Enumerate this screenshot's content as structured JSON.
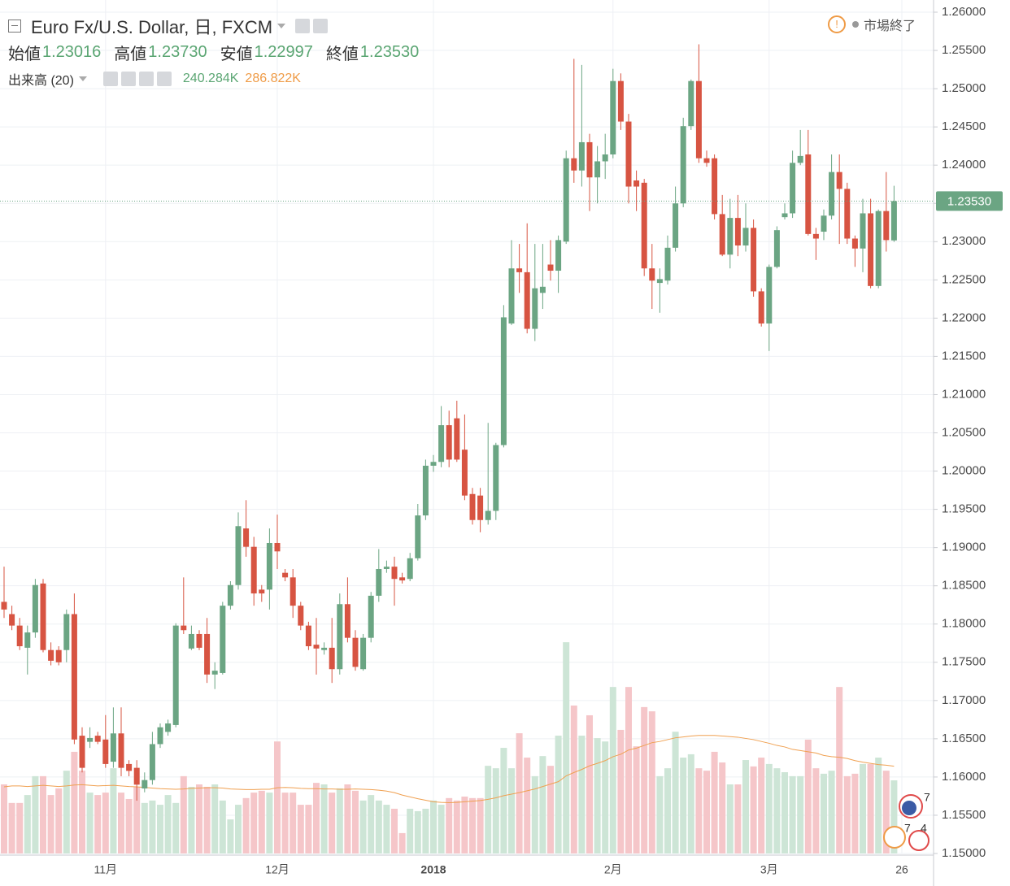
{
  "chart_data": {
    "type": "candlestick",
    "title": "Euro Fx/U.S. Dollar, 日, FXCM",
    "status": "市場終了",
    "legend": [
      {
        "label": "始値",
        "value": "1.23016"
      },
      {
        "label": "高値",
        "value": "1.23730"
      },
      {
        "label": "安値",
        "value": "1.22997"
      },
      {
        "label": "終値",
        "value": "1.23530"
      }
    ],
    "volume_title": "出来高 (20)",
    "volume_labels": [
      "240.284K",
      "286.822K"
    ],
    "events": [
      "7",
      "7",
      "4"
    ],
    "up_color": "#6ba583",
    "down_color": "#d75442",
    "volume_up_color": "#cde5d6",
    "volume_down_color": "#f5c6c9",
    "volume_ma_color": "#f0a050",
    "categories": [
      null,
      null,
      null,
      null,
      null,
      null,
      null,
      null,
      null,
      null,
      null,
      null,
      null,
      "11月",
      null,
      null,
      null,
      null,
      null,
      null,
      null,
      null,
      null,
      null,
      null,
      null,
      null,
      null,
      null,
      null,
      null,
      null,
      null,
      null,
      null,
      "12月",
      null,
      null,
      null,
      null,
      null,
      null,
      null,
      null,
      null,
      null,
      null,
      null,
      null,
      null,
      null,
      null,
      null,
      null,
      null,
      "2018",
      null,
      null,
      null,
      null,
      null,
      null,
      null,
      null,
      null,
      null,
      null,
      null,
      null,
      null,
      null,
      null,
      null,
      null,
      null,
      null,
      null,
      null,
      "2月",
      null,
      null,
      null,
      null,
      null,
      null,
      null,
      null,
      null,
      null,
      null,
      null,
      null,
      null,
      null,
      null,
      null,
      null,
      null,
      "3月",
      null,
      null,
      null,
      null,
      null,
      null,
      null,
      null,
      null,
      null,
      null,
      null,
      null,
      null,
      null,
      null,
      "26"
    ],
    "open": [
      1.1829,
      1.1813,
      1.1798,
      1.1769,
      1.1789,
      1.1853,
      1.1766,
      1.1766,
      1.1766,
      1.1813,
      1.1654,
      1.1646,
      1.1654,
      1.1649,
      1.162,
      1.1657,
      1.1617,
      1.1612,
      1.1585,
      1.1596,
      1.1643,
      1.1659,
      1.1668,
      1.1798,
      1.1768,
      1.1787,
      1.1787,
      1.1734,
      1.1736,
      1.1824,
      1.1851,
      1.1925,
      1.1901,
      1.1845,
      1.1845,
      1.1906,
      1.1867,
      1.1861,
      1.1824,
      1.1798,
      1.1773,
      1.1766,
      1.1769,
      1.1741,
      1.1826,
      1.1782,
      1.1741,
      1.1782,
      1.1837,
      1.1872,
      1.1875,
      1.1861,
      1.1859,
      1.1886,
      1.1942,
      1.2007,
      1.2012,
      1.206,
      1.2069,
      1.2028,
      1.197,
      1.1968,
      1.1936,
      1.1948,
      1.2034,
      1.2193,
      1.2265,
      1.226,
      1.2186,
      1.2233,
      1.227,
      1.2262,
      1.23,
      1.2409,
      1.2393,
      1.243,
      1.2384,
      1.2405,
      1.2414,
      1.251,
      1.2457,
      1.238,
      1.2377,
      1.2265,
      1.2246,
      1.2249,
      1.2292,
      1.235,
      1.2451,
      1.251,
      1.2409,
      1.2409,
      1.2336,
      1.2283,
      1.2331,
      1.2295,
      1.2318,
      1.2235,
      1.2193,
      1.2267,
      1.2332,
      1.2337,
      1.2403,
      1.2414,
      1.231,
      1.2313,
      1.2334,
      1.2391,
      1.2369,
      1.2304,
      1.2291,
      1.2337,
      1.2242,
      1.234,
      1.23016,
      null
    ],
    "high": [
      1.1875,
      1.1824,
      1.1808,
      1.1798,
      1.1859,
      1.1859,
      1.1776,
      1.1771,
      1.1819,
      1.184,
      1.1665,
      1.1665,
      1.1659,
      1.1681,
      1.1691,
      1.1691,
      1.1622,
      1.1622,
      1.1606,
      1.1659,
      1.167,
      1.1675,
      1.1801,
      1.1861,
      1.1798,
      1.1792,
      1.1808,
      1.175,
      1.1829,
      1.1856,
      1.1946,
      1.1962,
      1.1914,
      1.1851,
      1.1925,
      1.1943,
      1.1872,
      1.1872,
      1.1829,
      1.1803,
      1.1808,
      1.1776,
      1.1808,
      1.184,
      1.1861,
      1.1792,
      1.1787,
      1.1842,
      1.1898,
      1.1883,
      1.1888,
      1.1867,
      1.1893,
      1.1957,
      1.2015,
      1.2021,
      1.2085,
      1.2079,
      1.2092,
      1.2074,
      1.1978,
      1.1978,
      1.2063,
      1.2037,
      1.2217,
      1.2302,
      1.2297,
      1.2324,
      1.2297,
      1.2297,
      1.2302,
      1.2308,
      1.2419,
      1.2539,
      1.2531,
      1.2441,
      1.2425,
      1.2441,
      1.2526,
      1.252,
      1.2467,
      1.2393,
      1.2382,
      1.2297,
      1.2265,
      1.2308,
      1.2372,
      1.2462,
      1.2512,
      1.2558,
      1.2419,
      1.2414,
      1.2361,
      1.2356,
      1.2361,
      1.235,
      1.2329,
      1.2239,
      1.227,
      1.232,
      1.235,
      1.2419,
      1.2446,
      1.2446,
      1.2318,
      1.2342,
      1.2414,
      1.2414,
      1.2377,
      1.2308,
      1.2356,
      1.2356,
      1.2342,
      1.2391,
      1.2373,
      null
    ],
    "low": [
      1.1808,
      1.1792,
      1.1766,
      1.1734,
      1.1782,
      1.1763,
      1.1746,
      1.1746,
      1.175,
      1.1643,
      1.1606,
      1.1638,
      1.1643,
      1.1612,
      1.1612,
      1.1601,
      1.1601,
      1.1569,
      1.158,
      1.159,
      1.1638,
      1.1654,
      1.1665,
      1.1787,
      1.1766,
      1.1766,
      1.1723,
      1.1715,
      1.1734,
      1.1819,
      1.1845,
      1.1888,
      1.1824,
      1.1829,
      1.1819,
      1.1872,
      1.1856,
      1.1808,
      1.1792,
      1.1766,
      1.1734,
      1.176,
      1.1723,
      1.1734,
      1.1776,
      1.1739,
      1.1739,
      1.1776,
      1.1829,
      1.1867,
      1.1824,
      1.1853,
      1.1856,
      1.1883,
      1.1936,
      1.1999,
      1.2005,
      1.2005,
      1.2012,
      1.1962,
      1.193,
      1.192,
      1.193,
      1.1936,
      1.2031,
      1.2191,
      1.2233,
      1.218,
      1.217,
      1.2212,
      1.2249,
      1.2233,
      1.2297,
      1.2377,
      1.2372,
      1.234,
      1.235,
      1.2382,
      1.2409,
      1.2446,
      1.235,
      1.234,
      1.2255,
      1.2212,
      1.2207,
      1.2244,
      1.2287,
      1.2345,
      1.2446,
      1.2403,
      1.2398,
      1.2329,
      1.2281,
      1.2265,
      1.2281,
      1.2287,
      1.2228,
      1.2189,
      1.2157,
      1.2265,
      1.2329,
      1.2331,
      1.24,
      1.2308,
      1.2276,
      1.2302,
      1.2329,
      1.2297,
      1.2297,
      1.2267,
      1.226,
      1.2239,
      1.2239,
      1.2287,
      1.22997,
      null
    ],
    "close": [
      1.1819,
      1.1798,
      1.1771,
      1.1789,
      1.1851,
      1.1766,
      1.1752,
      1.175,
      1.1813,
      1.1649,
      1.1612,
      1.1651,
      1.1646,
      1.1617,
      1.1657,
      1.1612,
      1.1608,
      1.159,
      1.1596,
      1.1643,
      1.1665,
      1.167,
      1.1798,
      1.1792,
      1.1787,
      1.1769,
      1.1734,
      1.1739,
      1.1824,
      1.1851,
      1.1928,
      1.1901,
      1.184,
      1.184,
      1.1906,
      1.1895,
      1.1861,
      1.1824,
      1.1798,
      1.1771,
      1.1768,
      1.1769,
      1.1741,
      1.1826,
      1.1782,
      1.1744,
      1.1782,
      1.1837,
      1.1872,
      1.1875,
      1.1859,
      1.1857,
      1.1886,
      1.1942,
      1.2007,
      1.2012,
      1.206,
      1.2015,
      1.2015,
      1.1968,
      1.1936,
      1.1936,
      1.1948,
      1.2034,
      1.2201,
      1.2265,
      1.226,
      1.2186,
      1.2239,
      1.2241,
      1.2262,
      1.2302,
      1.2409,
      1.2393,
      1.243,
      1.2384,
      1.2405,
      1.2414,
      1.251,
      1.2457,
      1.2372,
      1.2372,
      1.2265,
      1.2249,
      1.2251,
      1.2292,
      1.235,
      1.2451,
      1.251,
      1.2409,
      1.2403,
      1.2336,
      1.2283,
      1.2331,
      1.2295,
      1.2318,
      1.2235,
      1.2193,
      1.2267,
      1.2315,
      1.2337,
      1.2403,
      1.2412,
      1.231,
      1.2304,
      1.2334,
      1.2391,
      1.2369,
      1.2304,
      1.2291,
      1.2337,
      1.2242,
      1.234,
      1.2302,
      1.2353,
      null
    ],
    "volume": [
      227,
      166,
      166,
      192,
      254,
      254,
      192,
      214,
      272,
      334,
      272,
      200,
      192,
      200,
      280,
      200,
      179,
      219,
      166,
      174,
      160,
      192,
      166,
      254,
      219,
      227,
      219,
      227,
      174,
      112,
      160,
      182,
      200,
      206,
      200,
      368,
      200,
      200,
      160,
      160,
      232,
      227,
      200,
      214,
      227,
      206,
      174,
      192,
      174,
      160,
      147,
      67,
      147,
      139,
      147,
      174,
      160,
      182,
      174,
      187,
      182,
      182,
      288,
      280,
      347,
      280,
      395,
      315,
      254,
      320,
      288,
      387,
      694,
      486,
      387,
      454,
      379,
      368,
      547,
      406,
      547,
      352,
      481,
      467,
      254,
      280,
      400,
      315,
      326,
      280,
      272,
      334,
      299,
      227,
      227,
      307,
      286,
      315,
      294,
      280,
      267,
      254,
      254,
      374,
      280,
      262,
      272,
      547,
      254,
      262,
      294,
      294,
      315,
      272,
      240.284,
      null
    ],
    "volume_ma": [
      219,
      222,
      222,
      220,
      222,
      224,
      222,
      220,
      222,
      225,
      226,
      224,
      222,
      223,
      224,
      222,
      220,
      219,
      217,
      215,
      213,
      212,
      211,
      212,
      214,
      215,
      216,
      216,
      215,
      212,
      211,
      210,
      210,
      211,
      211,
      216,
      217,
      216,
      214,
      213,
      213,
      212,
      212,
      211,
      211,
      212,
      211,
      210,
      208,
      205,
      200,
      192,
      186,
      180,
      175,
      170,
      168,
      167,
      168,
      170,
      172,
      174,
      178,
      183,
      190,
      195,
      200,
      206,
      212,
      220,
      228,
      236,
      255,
      266,
      276,
      288,
      296,
      305,
      318,
      326,
      340,
      346,
      355,
      364,
      368,
      374,
      380,
      383,
      386,
      388,
      388,
      388,
      386,
      384,
      382,
      378,
      374,
      368,
      362,
      355,
      350,
      342,
      338,
      334,
      330,
      322,
      318,
      316,
      312,
      305,
      300,
      296,
      292,
      290,
      286.822,
      null
    ],
    "ylim": [
      1.15,
      1.26
    ],
    "yticks": [
      {
        "value": 1.15,
        "label": "1.15000"
      },
      {
        "value": 1.155,
        "label": "1.15500"
      },
      {
        "value": 1.16,
        "label": "1.16000"
      },
      {
        "value": 1.165,
        "label": "1.16500"
      },
      {
        "value": 1.17,
        "label": "1.17000"
      },
      {
        "value": 1.175,
        "label": "1.17500"
      },
      {
        "value": 1.18,
        "label": "1.18000"
      },
      {
        "value": 1.185,
        "label": "1.18500"
      },
      {
        "value": 1.19,
        "label": "1.19000"
      },
      {
        "value": 1.195,
        "label": "1.19500"
      },
      {
        "value": 1.2,
        "label": "1.20000"
      },
      {
        "value": 1.205,
        "label": "1.20500"
      },
      {
        "value": 1.21,
        "label": "1.21000"
      },
      {
        "value": 1.215,
        "label": "1.21500"
      },
      {
        "value": 1.22,
        "label": "1.22000"
      },
      {
        "value": 1.225,
        "label": "1.22500"
      },
      {
        "value": 1.23,
        "label": "1.23000"
      },
      {
        "value": 1.235,
        "label": "1.23500"
      },
      {
        "value": 1.24,
        "label": "1.24000"
      },
      {
        "value": 1.245,
        "label": "1.24500"
      },
      {
        "value": 1.25,
        "label": "1.25000"
      },
      {
        "value": 1.255,
        "label": "1.25500"
      },
      {
        "value": 1.26,
        "label": "1.26000"
      }
    ],
    "grid": true
  }
}
